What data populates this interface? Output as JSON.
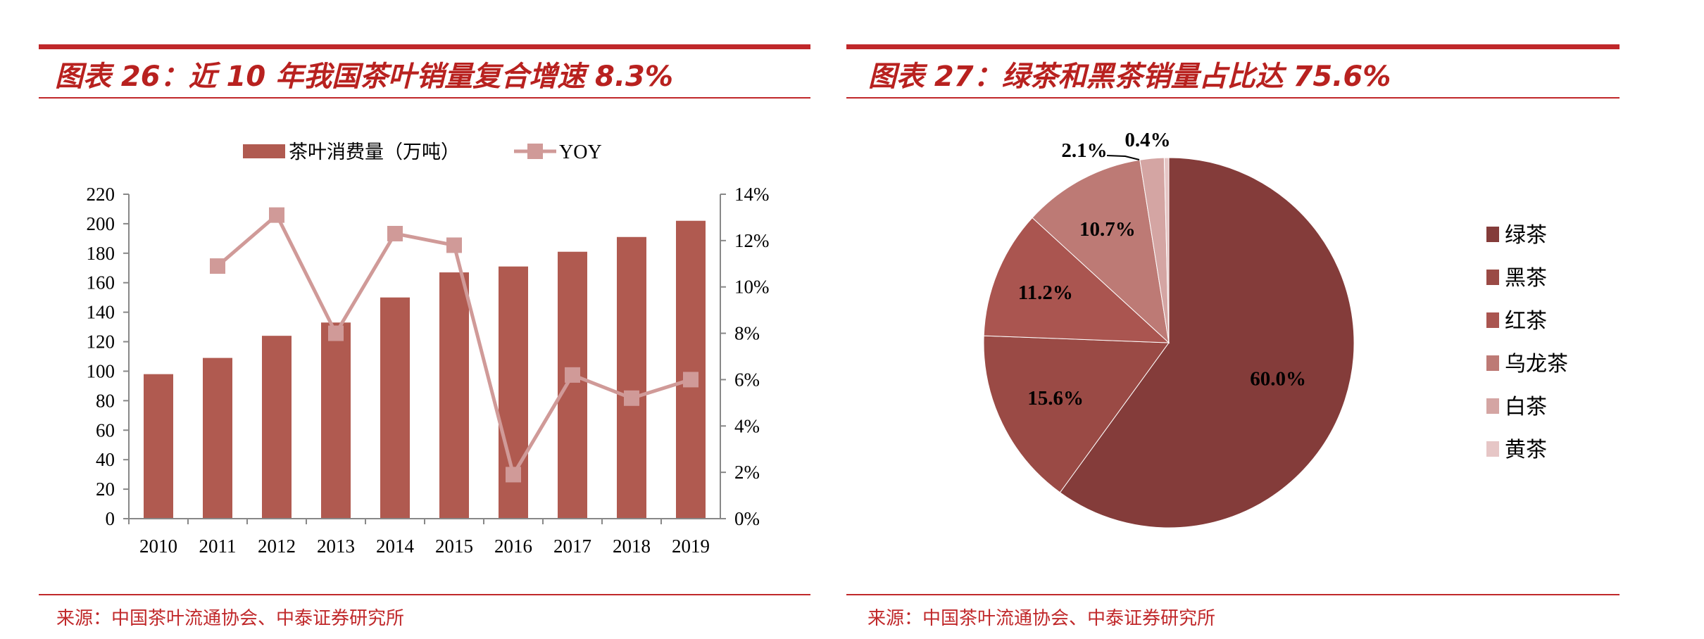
{
  "left": {
    "title": "图表 26：近 10 年我国茶叶销量复合增速 8.3%",
    "source": "来源：中国茶叶流通协会、中泰证券研究所"
  },
  "right": {
    "title": "图表 27：绿茶和黑茶销量占比达 75.6%",
    "source": "来源：中国茶叶流通协会、中泰证券研究所"
  },
  "colors": {
    "accent": "#c0282a",
    "bar": "#b05a50",
    "line": "#d09a98"
  },
  "chart_data": [
    {
      "type": "bar",
      "title": "近 10 年我国茶叶销量复合增速 8.3%",
      "categories": [
        "2010",
        "2011",
        "2012",
        "2013",
        "2014",
        "2015",
        "2016",
        "2017",
        "2018",
        "2019"
      ],
      "series": [
        {
          "name": "茶叶消费量（万吨）",
          "type": "bar",
          "axis": "left",
          "values": [
            98,
            109,
            124,
            133,
            150,
            167,
            171,
            181,
            191,
            202
          ]
        },
        {
          "name": "YOY",
          "type": "line",
          "axis": "right",
          "values": [
            null,
            10.9,
            13.1,
            8.0,
            12.3,
            11.8,
            1.9,
            6.2,
            5.2,
            6.0
          ]
        }
      ],
      "ylim": [
        0,
        220
      ],
      "yticks": [
        "0",
        "20",
        "40",
        "60",
        "80",
        "100",
        "120",
        "140",
        "160",
        "180",
        "200",
        "220"
      ],
      "y2lim": [
        0,
        14
      ],
      "y2ticks": [
        "0%",
        "2%",
        "4%",
        "6%",
        "8%",
        "10%",
        "12%",
        "14%"
      ],
      "legend": "top",
      "grid": false
    },
    {
      "type": "pie",
      "title": "绿茶和黑茶销量占比达 75.6%",
      "slices": [
        {
          "label": "绿茶",
          "value": 60.0,
          "text": "60.0%",
          "color": "#843c3a"
        },
        {
          "label": "黑茶",
          "value": 15.6,
          "text": "15.6%",
          "color": "#9a4a45"
        },
        {
          "label": "红茶",
          "value": 11.2,
          "text": "11.2%",
          "color": "#aa5550"
        },
        {
          "label": "乌龙茶",
          "value": 10.7,
          "text": "10.7%",
          "color": "#bd7a75"
        },
        {
          "label": "白茶",
          "value": 2.1,
          "text": "2.1%",
          "color": "#d4a5a3"
        },
        {
          "label": "黄茶",
          "value": 0.4,
          "text": "0.4%",
          "color": "#e6c6c6"
        }
      ],
      "legend": "right"
    }
  ]
}
